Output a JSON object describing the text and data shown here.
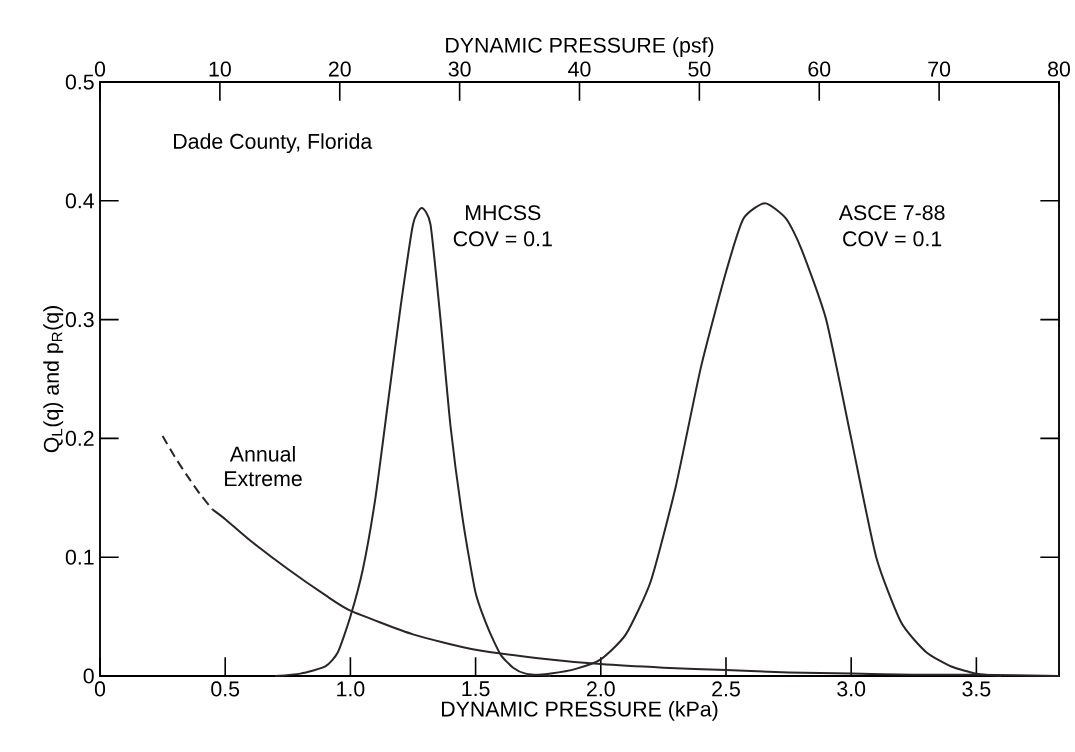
{
  "chart_data": {
    "type": "line",
    "xlabel": "DYNAMIC PRESSURE (kPa)",
    "x2label": "DYNAMIC PRESSURE (psf)",
    "ylabel": "Q$_{L}$(q) and p$_{R}$(q)",
    "xlim": [
      0,
      3.83
    ],
    "xticks": [
      0,
      0.5,
      {
        "value": 1,
        "label": "1.0"
      },
      1.5,
      {
        "value": 2,
        "label": "2.0"
      },
      2.5,
      {
        "value": 3,
        "label": "3.0"
      },
      3.5
    ],
    "x2lim": [
      0,
      80
    ],
    "x2ticks": [
      0,
      10,
      20,
      30,
      40,
      50,
      60,
      70,
      80
    ],
    "ylim": [
      0,
      0.5
    ],
    "yticks": [
      0,
      0.1,
      0.2,
      0.3,
      0.4,
      0.5
    ],
    "series": [
      {
        "color": "#2a2526",
        "line_style": "dashed",
        "x": [
          0.25,
          0.3,
          0.35,
          0.4,
          0.45
        ],
        "values": [
          0.202,
          0.184,
          0.168,
          0.153,
          0.14
        ]
      },
      {
        "color": "#2a2526",
        "line_style": "solid",
        "x": [
          0.45,
          0.5,
          0.6,
          0.75,
          0.9,
          1.0,
          1.25,
          1.5,
          1.75,
          2.0,
          2.25,
          2.5,
          2.75,
          3.0,
          3.25,
          3.5,
          3.83
        ],
        "values": [
          0.14,
          0.132,
          0.114,
          0.09,
          0.068,
          0.055,
          0.035,
          0.022,
          0.015,
          0.01,
          0.007,
          0.005,
          0.003,
          0.002,
          0.001,
          0.001,
          0
        ]
      },
      {
        "color": "#2a2526",
        "line_style": "solid",
        "x": [
          0.7,
          0.8,
          0.9,
          0.95,
          1.0,
          1.05,
          1.1,
          1.15,
          1.2,
          1.25,
          1.285,
          1.32,
          1.36,
          1.4,
          1.45,
          1.5,
          1.55,
          1.6,
          1.65,
          1.7,
          1.8
        ],
        "values": [
          0,
          0.002,
          0.008,
          0.02,
          0.05,
          0.09,
          0.15,
          0.23,
          0.31,
          0.38,
          0.394,
          0.38,
          0.3,
          0.21,
          0.13,
          0.07,
          0.04,
          0.018,
          0.007,
          0.002,
          0
        ]
      },
      {
        "color": "#2a2526",
        "line_style": "solid",
        "x": [
          1.7,
          1.8,
          1.9,
          2.0,
          2.1,
          2.2,
          2.3,
          2.4,
          2.5,
          2.57,
          2.656,
          2.74,
          2.8,
          2.9,
          3.0,
          3.1,
          3.2,
          3.3,
          3.4,
          3.5,
          3.6
        ],
        "values": [
          0,
          0.002,
          0.006,
          0.014,
          0.035,
          0.08,
          0.16,
          0.26,
          0.34,
          0.385,
          0.398,
          0.385,
          0.36,
          0.3,
          0.2,
          0.1,
          0.045,
          0.02,
          0.008,
          0.002,
          0
        ]
      }
    ],
    "annotations": [
      "Dade County, Florida",
      "MHCSS",
      "COV = 0.1",
      "ASCE 7-88",
      "COV = 0.1",
      "Annual",
      "Extreme"
    ]
  }
}
